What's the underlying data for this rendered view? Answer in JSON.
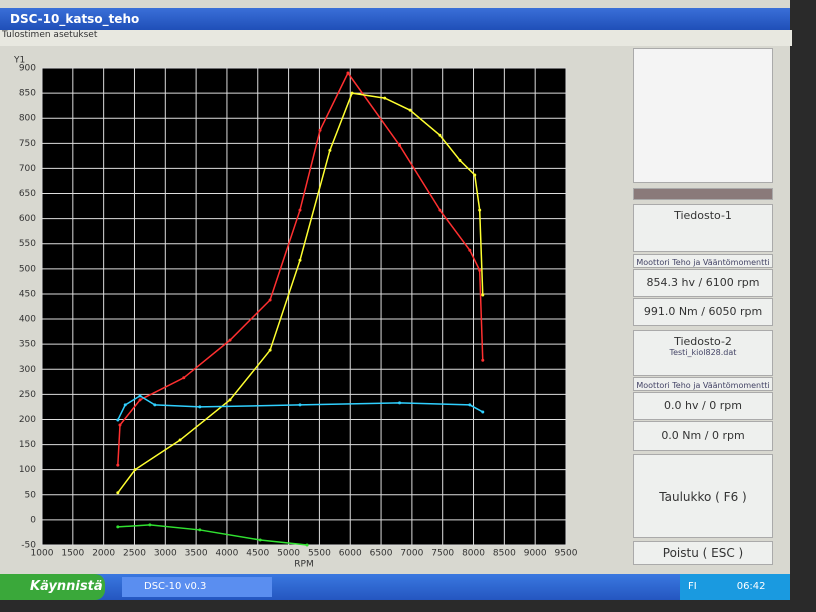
{
  "window": {
    "title": "DSC-10_katso_teho",
    "menu": "Tulostimen asetukset"
  },
  "chart_data": {
    "type": "line",
    "y_axis_label": "Y1",
    "x_axis_label": "RPM",
    "xlim": [
      1000,
      9500
    ],
    "xticks": [
      1000,
      1500,
      2000,
      2500,
      3000,
      3500,
      4000,
      4500,
      5000,
      5500,
      6000,
      6500,
      7000,
      7500,
      8000,
      8500,
      9000,
      9500
    ],
    "ylim": [
      -50,
      900
    ],
    "yticks": [
      900,
      850,
      800,
      750,
      700,
      650,
      600,
      550,
      500,
      450,
      400,
      350,
      300,
      250,
      200,
      150,
      100,
      50,
      0,
      -50
    ],
    "grid": true,
    "series": [
      {
        "color": "#ff3030",
        "x": [
          2230,
          2265,
          2590,
          3300,
          4050,
          4700,
          5185,
          5510,
          5963,
          6800,
          7455,
          7940,
          8100,
          8150
        ],
        "values": [
          109,
          189,
          239,
          283,
          358,
          438,
          617,
          776,
          890,
          746,
          617,
          537,
          497,
          318
        ]
      },
      {
        "color": "#ffff30",
        "x": [
          2230,
          2510,
          3240,
          4050,
          4700,
          5185,
          5670,
          6030,
          6560,
          6970,
          7455,
          7780,
          8020,
          8100,
          8150
        ],
        "values": [
          54,
          100,
          159,
          239,
          338,
          517,
          736,
          850,
          840,
          816,
          766,
          716,
          687,
          617,
          448
        ]
      },
      {
        "color": "#30d0ff",
        "x": [
          2230,
          2350,
          2590,
          2830,
          3560,
          5185,
          6800,
          7940,
          8150
        ],
        "values": [
          199,
          229,
          247,
          229,
          225,
          229,
          233,
          229,
          215
        ]
      },
      {
        "color": "#30e030",
        "x": [
          2230,
          2750,
          3560,
          4540,
          5300
        ],
        "values": [
          -14,
          -10,
          -20,
          -40,
          -50
        ]
      }
    ]
  },
  "panel": {
    "file1": {
      "label": "Tiedosto-1",
      "heading": "Moottori Teho ja Vääntömomentti",
      "power": "854.3 hv / 6100 rpm",
      "torque": "991.0 Nm / 6050 rpm"
    },
    "file2": {
      "label": "Tiedosto-2",
      "file": "Testi_kiol828.dat",
      "heading": "Moottori Teho ja Vääntömomentti",
      "power": "0.0 hv / 0 rpm",
      "torque": "0.0 Nm / 0 rpm"
    },
    "table_button": "Taulukko ( F6 )",
    "exit_button": "Poistu ( ESC )"
  },
  "taskbar": {
    "start": "Käynnistä",
    "task": "DSC-10 v0.3",
    "lang": "FI",
    "clock": "06:42"
  }
}
